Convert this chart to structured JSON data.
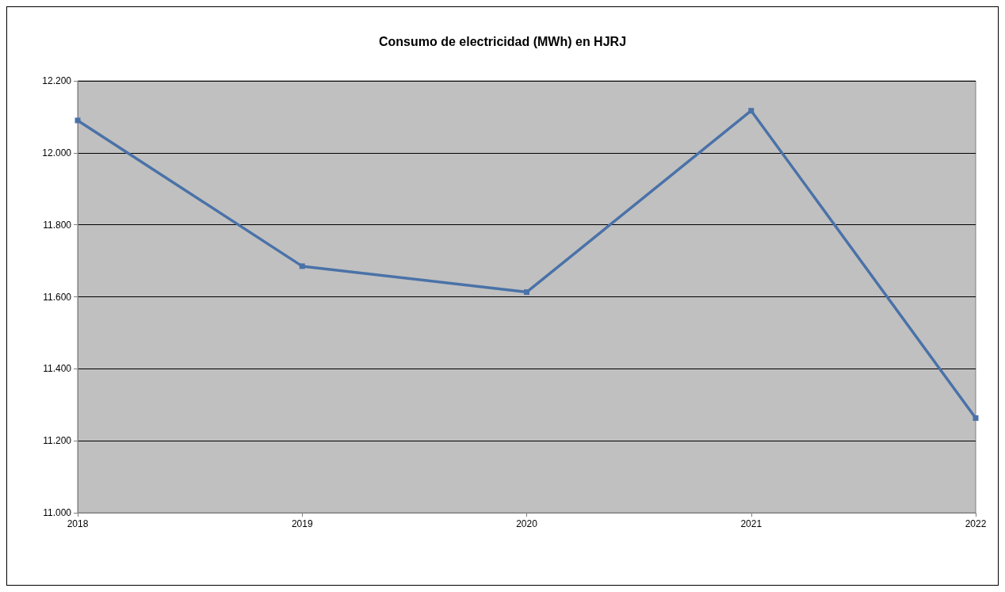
{
  "chart_data": {
    "type": "line",
    "title": "Consumo de electricidad (MWh) en HJRJ",
    "categories": [
      "2018",
      "2019",
      "2020",
      "2021",
      "2022"
    ],
    "series": [
      {
        "color": "#4a72a8",
        "values": [
          12090,
          11685,
          11613,
          12117,
          11263
        ]
      }
    ],
    "ylim": [
      11000,
      12200
    ],
    "yticks": [
      {
        "value": 11000,
        "label": "11.000"
      },
      {
        "value": 11200,
        "label": "11.200"
      },
      {
        "value": 11400,
        "label": "11.400"
      },
      {
        "value": 11600,
        "label": "11.600"
      },
      {
        "value": 11800,
        "label": "11.800"
      },
      {
        "value": 12000,
        "label": "12.000"
      },
      {
        "value": 12200,
        "label": "12.200"
      }
    ],
    "grid": "y",
    "marker": "square",
    "line_style": "solid"
  }
}
